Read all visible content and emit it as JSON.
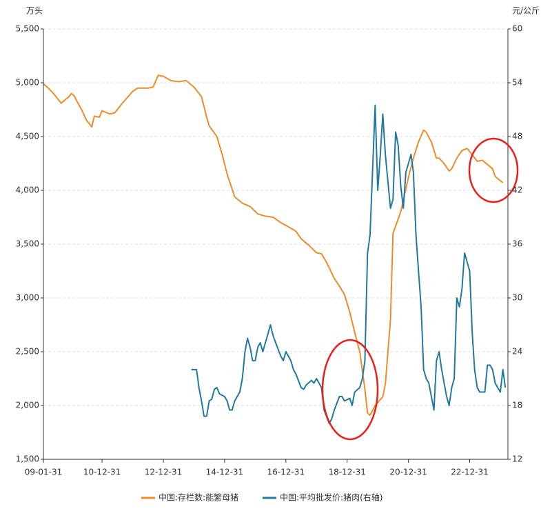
{
  "chart_data": {
    "type": "line",
    "y_unit": "万头",
    "y2_unit": "元/公斤",
    "xlim": [
      "09-01-31",
      "24-03-31"
    ],
    "xticks": [
      "09-01-31",
      "10-12-31",
      "12-12-31",
      "14-12-31",
      "16-12-31",
      "18-12-31",
      "20-12-31",
      "22-12-31"
    ],
    "ylim": [
      1500,
      5500
    ],
    "yticks": [
      {
        "value": 1500,
        "label": "1,500"
      },
      {
        "value": 2000,
        "label": "2,000"
      },
      {
        "value": 2500,
        "label": "2,500"
      },
      {
        "value": 3000,
        "label": "3,000"
      },
      {
        "value": 3500,
        "label": "3,500"
      },
      {
        "value": 4000,
        "label": "4,000"
      },
      {
        "value": 4500,
        "label": "4,500"
      },
      {
        "value": 5000,
        "label": "5,000"
      },
      {
        "value": 5500,
        "label": "5,500"
      }
    ],
    "y2lim": [
      12,
      60
    ],
    "y2ticks": [
      12,
      18,
      24,
      30,
      36,
      42,
      48,
      54,
      60
    ],
    "grid": true,
    "legend": "bottom",
    "series": [
      {
        "name": "中国:存栏数:能繁母猪",
        "color": "#ee8c2c",
        "x": [
          "09-01-31",
          "09-03-31",
          "09-05-31",
          "09-08-31",
          "09-11-30",
          "09-12-31",
          "10-01-31",
          "10-04-30",
          "10-06-30",
          "10-08-31",
          "10-09-30",
          "10-11-30",
          "10-12-31",
          "11-03-31",
          "11-05-31",
          "11-08-31",
          "11-12-31",
          "12-02-29",
          "12-06-30",
          "12-08-31",
          "12-10-31",
          "12-12-31",
          "13-03-31",
          "13-06-30",
          "13-09-30",
          "13-12-31",
          "14-03-31",
          "14-05-31",
          "14-06-30",
          "14-09-30",
          "14-11-30",
          "15-01-31",
          "15-04-30",
          "15-07-31",
          "15-10-31",
          "16-01-31",
          "16-04-30",
          "16-07-31",
          "16-10-31",
          "17-01-31",
          "17-04-30",
          "17-06-30",
          "17-09-30",
          "17-12-31",
          "18-02-28",
          "18-04-30",
          "18-07-31",
          "18-09-30",
          "18-11-30",
          "19-01-31",
          "19-03-31",
          "19-05-31",
          "19-07-31",
          "19-08-31",
          "19-09-30",
          "19-11-30",
          "20-02-29",
          "20-03-31",
          "20-05-31",
          "20-06-30",
          "20-09-30",
          "20-12-31",
          "21-02-28",
          "21-04-30",
          "21-06-30",
          "21-07-31",
          "21-09-30",
          "21-11-30",
          "21-12-31",
          "22-02-28",
          "22-04-30",
          "22-05-31",
          "22-07-31",
          "22-09-30",
          "22-11-30",
          "23-01-31",
          "23-03-31",
          "23-05-31",
          "23-07-31",
          "23-09-30",
          "23-10-31",
          "24-01-31"
        ],
        "values": [
          4990,
          4950,
          4900,
          4810,
          4870,
          4900,
          4880,
          4750,
          4650,
          4590,
          4690,
          4680,
          4740,
          4710,
          4720,
          4810,
          4920,
          4950,
          4950,
          4960,
          5070,
          5060,
          5020,
          5010,
          5020,
          4960,
          4870,
          4680,
          4600,
          4500,
          4340,
          4150,
          3940,
          3880,
          3850,
          3780,
          3760,
          3750,
          3700,
          3660,
          3620,
          3550,
          3490,
          3420,
          3410,
          3330,
          3180,
          3110,
          3030,
          2870,
          2680,
          2500,
          2150,
          1930,
          1910,
          2000,
          2080,
          2200,
          2800,
          3600,
          3800,
          4120,
          4300,
          4450,
          4560,
          4540,
          4450,
          4300,
          4300,
          4250,
          4180,
          4200,
          4300,
          4370,
          4390,
          4330,
          4270,
          4280,
          4240,
          4200,
          4130,
          4070
        ]
      },
      {
        "name": "中国:平均批发价:猪肉(右轴)",
        "color": "#22789e",
        "axis": "y2",
        "x": [
          "13-11-30",
          "14-01-31",
          "14-02-28",
          "14-03-31",
          "14-04-30",
          "14-05-31",
          "14-06-30",
          "14-07-31",
          "14-08-31",
          "14-09-30",
          "14-10-31",
          "14-12-31",
          "15-01-31",
          "15-02-28",
          "15-03-31",
          "15-04-30",
          "15-06-30",
          "15-07-31",
          "15-08-31",
          "15-09-30",
          "15-10-31",
          "15-11-30",
          "15-12-31",
          "16-01-31",
          "16-02-29",
          "16-03-31",
          "16-05-31",
          "16-06-30",
          "16-07-31",
          "16-08-31",
          "16-10-31",
          "16-11-30",
          "16-12-31",
          "17-02-28",
          "17-03-31",
          "17-04-30",
          "17-06-30",
          "17-07-31",
          "17-08-31",
          "17-10-31",
          "17-11-30",
          "17-12-31",
          "18-02-28",
          "18-03-31",
          "18-05-31",
          "18-06-30",
          "18-07-31",
          "18-09-30",
          "18-10-31",
          "18-11-30",
          "19-01-31",
          "19-02-28",
          "19-03-31",
          "19-05-31",
          "19-06-30",
          "19-07-31",
          "19-08-31",
          "19-09-30",
          "19-11-30",
          "19-12-31",
          "20-01-31",
          "20-02-29",
          "20-03-31",
          "20-04-30",
          "20-05-31",
          "20-06-30",
          "20-07-31",
          "20-08-31",
          "20-09-30",
          "20-10-31",
          "20-11-30",
          "21-01-31",
          "21-02-28",
          "21-03-31",
          "21-04-30",
          "21-05-31",
          "21-06-30",
          "21-07-31",
          "21-08-31",
          "21-09-30",
          "21-10-31",
          "21-11-30",
          "21-12-31",
          "22-01-31",
          "22-03-31",
          "22-04-30",
          "22-05-31",
          "22-06-30",
          "22-07-31",
          "22-08-31",
          "22-09-30",
          "22-10-31",
          "22-12-31",
          "23-01-31",
          "23-02-28",
          "23-03-31",
          "23-04-30",
          "23-05-31",
          "23-06-30",
          "23-07-31",
          "23-08-31",
          "23-09-30",
          "23-10-31",
          "23-11-30",
          "23-12-31",
          "24-01-31",
          "24-02-29"
        ],
        "values": [
          22,
          22,
          20,
          18.5,
          16.8,
          16.8,
          18.5,
          18.7,
          19.8,
          20,
          19.3,
          19,
          18.5,
          17.5,
          17.5,
          18.5,
          19.5,
          21,
          24,
          25.5,
          24.5,
          23,
          23,
          24.5,
          25,
          24,
          26,
          27,
          25.8,
          25,
          23.5,
          23,
          24,
          23,
          22,
          21.5,
          20,
          19.8,
          20.3,
          20.8,
          20.5,
          21,
          20,
          17.5,
          16,
          16.5,
          17.5,
          19,
          19,
          18.5,
          18.8,
          18,
          19.5,
          20,
          21,
          23,
          35,
          37,
          51.5,
          42,
          46,
          50.5,
          46,
          43,
          40,
          41,
          48.5,
          47,
          42.5,
          40,
          44,
          46,
          44,
          37,
          33,
          29,
          22,
          21,
          20.5,
          19,
          17.5,
          23,
          24,
          22,
          19,
          18,
          20,
          21,
          30,
          29,
          31,
          35,
          33,
          26,
          22,
          20,
          19.5,
          19.5,
          19.5,
          22.5,
          22.5,
          22,
          20.5,
          20,
          19.5,
          22,
          20
        ]
      }
    ]
  }
}
